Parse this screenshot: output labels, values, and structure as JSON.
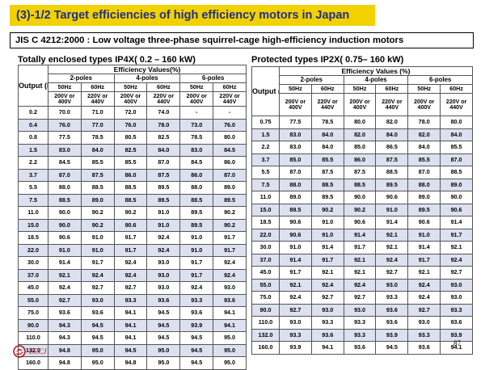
{
  "slide": {
    "title": "(3)-1/2 Target efficiencies of high efficiency motors in Japan",
    "subtitle": "JIS C 4212:2000 : Low voltage three-phase squirrel-cage high-efficiency induction motors",
    "page_number": "87",
    "logo_text": "ECCJ",
    "accent_color": "#f2d100",
    "title_color": "#1f2f8a"
  },
  "left_table": {
    "caption": "Totally enclosed types IP4X( 0.2 – 160 kW)",
    "output_label": "Output (kW)",
    "eff_label": "Efficiency Values(%)",
    "poles": [
      "2-poles",
      "4-poles",
      "6-poles"
    ],
    "freqs": [
      "50Hz",
      "60Hz",
      "50Hz",
      "60Hz",
      "50Hz",
      "60Hz"
    ],
    "volts": [
      "200V or 400V",
      "220V or 440V",
      "200V or 400V",
      "220V or 440V",
      "200V or 400V",
      "220V or 440V"
    ],
    "rows": [
      [
        "0.2",
        "70.0",
        "71.0",
        "72.0",
        "74.0",
        "-",
        "-"
      ],
      [
        "0.4",
        "76.0",
        "77.0",
        "76.0",
        "78.0",
        "73.0",
        "76.0"
      ],
      [
        "0.8",
        "77.5",
        "78.5",
        "80.5",
        "82.5",
        "78.5",
        "80.0"
      ],
      [
        "1.5",
        "83.0",
        "84.0",
        "82.5",
        "84.0",
        "83.0",
        "84.5"
      ],
      [
        "2.2",
        "84.5",
        "85.5",
        "85.5",
        "87.0",
        "84.5",
        "86.0"
      ],
      [
        "3.7",
        "87.0",
        "87.5",
        "86.0",
        "87.5",
        "86.0",
        "87.0"
      ],
      [
        "5.5",
        "88.0",
        "88.5",
        "88.5",
        "89.5",
        "88.0",
        "89.0"
      ],
      [
        "7.5",
        "88.5",
        "89.0",
        "88.5",
        "89.5",
        "88.5",
        "89.5"
      ],
      [
        "11.0",
        "90.0",
        "90.2",
        "90.2",
        "91.0",
        "89.5",
        "90.2"
      ],
      [
        "15.0",
        "90.0",
        "90.2",
        "90.6",
        "91.0",
        "89.5",
        "90.2"
      ],
      [
        "18.5",
        "90.6",
        "91.0",
        "91.7",
        "92.4",
        "91.0",
        "91.7"
      ],
      [
        "22.0",
        "91.0",
        "91.0",
        "91.7",
        "92.4",
        "91.0",
        "91.7"
      ],
      [
        "30.0",
        "91.4",
        "91.7",
        "92.4",
        "93.0",
        "91.7",
        "92.4"
      ],
      [
        "37.0",
        "92.1",
        "92.4",
        "92.4",
        "93.0",
        "91.7",
        "92.4"
      ],
      [
        "45.0",
        "92.4",
        "92.7",
        "92.7",
        "93.0",
        "92.4",
        "93.0"
      ],
      [
        "55.0",
        "92.7",
        "93.0",
        "93.3",
        "93.6",
        "93.3",
        "93.6"
      ],
      [
        "75.0",
        "93.6",
        "93.6",
        "94.1",
        "94.5",
        "93.6",
        "94.1"
      ],
      [
        "90.0",
        "94.3",
        "94.5",
        "94.1",
        "94.5",
        "93.9",
        "94.1"
      ],
      [
        "110.0",
        "94.3",
        "94.5",
        "94.1",
        "94.5",
        "94.5",
        "95.0"
      ],
      [
        "132.0",
        "94.8",
        "95.0",
        "94.5",
        "95.0",
        "94.5",
        "95.0"
      ],
      [
        "160.0",
        "94.8",
        "95.0",
        "94.8",
        "95.0",
        "94.5",
        "95.0"
      ]
    ]
  },
  "right_table": {
    "caption": "Protected types IP2X( 0.75– 160 kW)",
    "output_label": "Output (kW)",
    "eff_label": "Efficiency Values (%)",
    "poles": [
      "2-poles",
      "4-poles",
      "6-poles"
    ],
    "freqs": [
      "50Hz",
      "60Hz",
      "50Hz",
      "60Hz",
      "50Hz",
      "60Hz"
    ],
    "volts": [
      "200V or 400V",
      "220V or 440V",
      "200V or 400V",
      "220V or 440V",
      "200V or 400V",
      "220V or 440V"
    ],
    "rows": [
      [
        "0.75",
        "77.5",
        "78.5",
        "80.0",
        "82.0",
        "78.0",
        "80.0"
      ],
      [
        "1.5",
        "83.0",
        "84.0",
        "82.0",
        "84.0",
        "82.0",
        "84.0"
      ],
      [
        "2.2",
        "83.0",
        "84.0",
        "85.0",
        "86.5",
        "84.0",
        "85.5"
      ],
      [
        "3.7",
        "85.0",
        "85.5",
        "86.0",
        "87.5",
        "85.5",
        "87.0"
      ],
      [
        "5.5",
        "87.0",
        "87.5",
        "87.5",
        "88.5",
        "87.0",
        "88.5"
      ],
      [
        "7.5",
        "88.0",
        "88.5",
        "88.5",
        "89.5",
        "88.0",
        "89.0"
      ],
      [
        "11.0",
        "89.0",
        "89.5",
        "90.0",
        "90.6",
        "89.0",
        "90.0"
      ],
      [
        "15.0",
        "89.5",
        "90.2",
        "90.2",
        "91.0",
        "89.5",
        "90.6"
      ],
      [
        "18.5",
        "90.6",
        "91.0",
        "90.6",
        "91.4",
        "90.6",
        "91.4"
      ],
      [
        "22.0",
        "90.6",
        "91.0",
        "91.4",
        "92.1",
        "91.0",
        "91.7"
      ],
      [
        "30.0",
        "91.0",
        "91.4",
        "91.7",
        "92.1",
        "91.4",
        "92.1"
      ],
      [
        "37.0",
        "91.4",
        "91.7",
        "92.1",
        "92.4",
        "91.7",
        "92.4"
      ],
      [
        "45.0",
        "91.7",
        "92.1",
        "92.1",
        "92.7",
        "92.1",
        "92.7"
      ],
      [
        "55.0",
        "92.1",
        "92.4",
        "92.4",
        "93.0",
        "92.4",
        "93.0"
      ],
      [
        "75.0",
        "92.4",
        "92.7",
        "92.7",
        "93.3",
        "92.4",
        "93.0"
      ],
      [
        "90.0",
        "92.7",
        "93.0",
        "93.0",
        "93.6",
        "92.7",
        "93.3"
      ],
      [
        "110.0",
        "93.0",
        "93.3",
        "93.3",
        "93.6",
        "93.0",
        "93.6"
      ],
      [
        "132.0",
        "93.3",
        "93.6",
        "93.3",
        "93.9",
        "93.3",
        "93.9"
      ],
      [
        "160.0",
        "93.9",
        "94.1",
        "93.6",
        "94.5",
        "93.6",
        "94.1"
      ]
    ]
  }
}
